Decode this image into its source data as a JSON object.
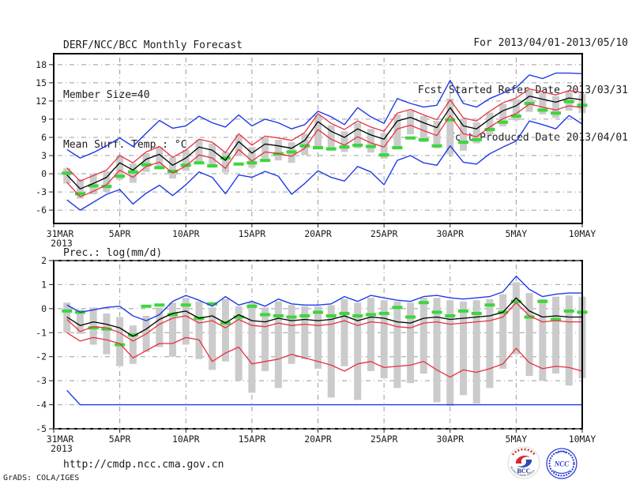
{
  "header": {
    "title": "DERF/NCC/BCC Monthly Forecast",
    "member_size": "Member Size=40",
    "temp_panel_label": "Mean Surf. Temp.: °C",
    "for_range": "For 2013/04/01-2013/05/10",
    "fcst_started": "Fcst Started Refer Date 2013/03/31",
    "fcst_produced": "Fcst Produced Date 2013/04/01"
  },
  "prec_panel_label": "Prec.: log(mm/d)",
  "footer": {
    "url": "http://cmdp.ncc.cma.gov.cn",
    "grads_credit": "GrADS: COLA/IGES",
    "bcc_logo_text": "BCC",
    "bcc_logo_subtext": "BEIJING CLIMATE CENTER",
    "ncc_logo_text": "NCC"
  },
  "colors": {
    "envelope_blue": "#1e3ae6",
    "quartile_red": "#e8323e",
    "mean_black": "#000000",
    "obs_green": "#3cd63c",
    "spread_gray": "#cbcbcb",
    "grid_gray": "#9a9a9a"
  },
  "chart_data": [
    {
      "id": "temperature",
      "type": "line",
      "title": "Mean Surf. Temp.: °C",
      "xlabel": "",
      "ylabel": "",
      "grid": true,
      "legend": "none",
      "xlim": [
        0,
        40
      ],
      "ylim": [
        -8.2,
        19.8
      ],
      "yticks": [
        -6,
        -3,
        0,
        3,
        6,
        9,
        12,
        15,
        18
      ],
      "xticks": {
        "labels": [
          "31MAR",
          "5APR",
          "10APR",
          "15APR",
          "20APR",
          "25APR",
          "30APR",
          "5MAY",
          "10MAY"
        ],
        "days": [
          0,
          5,
          10,
          15,
          20,
          25,
          30,
          35,
          40
        ],
        "year_label": "2013"
      },
      "days": [
        1,
        2,
        3,
        4,
        5,
        6,
        7,
        8,
        9,
        10,
        11,
        12,
        13,
        14,
        15,
        16,
        17,
        18,
        19,
        20,
        21,
        22,
        23,
        24,
        25,
        26,
        27,
        28,
        29,
        30,
        31,
        32,
        33,
        34,
        35,
        36,
        37,
        38,
        39,
        40
      ],
      "series": [
        {
          "name": "blue-max",
          "color": "#1e3ae6",
          "width": 1.4,
          "values": [
            4.0,
            2.6,
            3.5,
            4.6,
            5.9,
            4.5,
            6.7,
            8.8,
            7.5,
            7.9,
            9.5,
            8.4,
            7.7,
            9.7,
            7.9,
            9.0,
            8.4,
            7.4,
            8.1,
            10.3,
            9.4,
            8.1,
            10.9,
            9.4,
            8.3,
            12.4,
            11.6,
            11.0,
            11.3,
            15.4,
            11.6,
            11.0,
            12.4,
            13.3,
            14.2,
            16.3,
            15.7,
            16.6,
            16.6,
            16.5
          ]
        },
        {
          "name": "red-upper",
          "color": "#e8323e",
          "width": 1.3,
          "values": [
            1.0,
            -1.2,
            -0.3,
            0.6,
            3.0,
            1.8,
            3.6,
            4.5,
            2.7,
            3.9,
            5.7,
            5.2,
            3.5,
            6.6,
            4.7,
            6.2,
            5.9,
            5.5,
            6.8,
            9.9,
            8.3,
            7.3,
            8.7,
            7.7,
            7.0,
            10.0,
            10.6,
            9.7,
            8.9,
            12.2,
            9.2,
            8.7,
            10.3,
            11.7,
            12.5,
            14.0,
            13.5,
            13.0,
            13.7,
            13.4
          ]
        },
        {
          "name": "black-mean",
          "color": "#000000",
          "width": 1.3,
          "values": [
            -0.2,
            -2.5,
            -1.6,
            -0.6,
            1.8,
            0.6,
            2.4,
            3.2,
            1.4,
            2.6,
            4.4,
            3.9,
            2.2,
            5.3,
            3.4,
            4.9,
            4.6,
            4.2,
            5.5,
            8.6,
            7.0,
            6.0,
            7.4,
            6.4,
            5.7,
            8.7,
            9.3,
            8.4,
            7.6,
            10.9,
            7.9,
            7.4,
            9.0,
            10.4,
            11.2,
            12.8,
            12.3,
            11.8,
            12.5,
            12.2
          ]
        },
        {
          "name": "red-lower",
          "color": "#e8323e",
          "width": 1.3,
          "values": [
            -1.4,
            -3.8,
            -2.9,
            -1.8,
            0.6,
            -0.6,
            1.2,
            1.9,
            0.1,
            1.3,
            3.1,
            2.6,
            0.9,
            4.0,
            2.1,
            3.6,
            3.3,
            2.9,
            4.2,
            7.3,
            5.7,
            4.7,
            6.1,
            5.1,
            4.4,
            7.4,
            8.0,
            7.1,
            6.3,
            9.6,
            6.6,
            6.1,
            7.7,
            9.1,
            9.9,
            11.5,
            11.0,
            10.5,
            11.2,
            10.9
          ]
        },
        {
          "name": "blue-min",
          "color": "#1e3ae6",
          "width": 1.4,
          "values": [
            -4.3,
            -6.0,
            -4.7,
            -3.4,
            -2.6,
            -5.0,
            -3.2,
            -1.9,
            -3.6,
            -1.8,
            0.3,
            -0.6,
            -3.3,
            -0.2,
            -0.6,
            0.4,
            -0.4,
            -3.4,
            -1.6,
            0.5,
            -0.6,
            -1.2,
            1.2,
            0.3,
            -1.8,
            2.2,
            3.0,
            1.8,
            1.4,
            4.6,
            1.9,
            1.6,
            3.3,
            4.4,
            5.4,
            8.7,
            8.1,
            7.4,
            9.6,
            8.2
          ]
        },
        {
          "name": "green-dashes",
          "color": "#3cd63c",
          "style": "dashes",
          "values": [
            0.1,
            -3.3,
            -2.0,
            -2.1,
            -0.4,
            0.3,
            1.5,
            1.0,
            0.4,
            1.4,
            1.8,
            1.3,
            2.6,
            1.6,
            1.8,
            2.2,
            3.3,
            3.6,
            4.6,
            4.3,
            4.1,
            4.4,
            4.7,
            4.5,
            3.1,
            4.3,
            5.9,
            5.6,
            4.6,
            8.9,
            5.2,
            5.6,
            7.3,
            8.5,
            9.5,
            11.6,
            10.5,
            10.0,
            11.9,
            11.3
          ]
        }
      ],
      "bars": {
        "name": "gray-spread-bars",
        "color": "#cbcbcb",
        "top": [
          0.9,
          -0.9,
          0.0,
          0.4,
          2.9,
          1.7,
          3.4,
          4.4,
          2.7,
          3.9,
          5.6,
          5.0,
          3.6,
          6.4,
          4.4,
          6.0,
          5.6,
          5.2,
          6.6,
          9.7,
          8.0,
          7.0,
          8.4,
          7.4,
          6.7,
          9.8,
          10.4,
          9.5,
          8.7,
          12.4,
          9.0,
          8.5,
          10.1,
          11.5,
          12.3,
          13.8,
          13.3,
          12.8,
          13.5,
          13.2
        ],
        "bottom": [
          -1.6,
          -4.1,
          -3.4,
          -3.0,
          -1.0,
          -1.5,
          0.3,
          0.8,
          -0.8,
          0.5,
          2.0,
          1.0,
          0.2,
          2.9,
          1.0,
          2.5,
          2.2,
          1.8,
          3.1,
          4.0,
          3.8,
          3.6,
          4.2,
          3.5,
          2.5,
          4.0,
          6.5,
          5.2,
          4.2,
          3.2,
          3.8,
          5.0,
          6.5,
          7.8,
          8.8,
          10.2,
          9.8,
          9.2,
          10.4,
          10.0
        ]
      }
    },
    {
      "id": "precipitation",
      "type": "line",
      "title": "Prec.: log(mm/d)",
      "xlabel": "",
      "ylabel": "",
      "grid": true,
      "legend": "none",
      "xlim": [
        0,
        40
      ],
      "ylim": [
        -5,
        2
      ],
      "yticks": [
        -5,
        -4,
        -3,
        -2,
        -1,
        0,
        1,
        2
      ],
      "xticks": {
        "labels": [
          "31MAR",
          "5APR",
          "10APR",
          "15APR",
          "20APR",
          "25APR",
          "30APR",
          "5MAY",
          "10MAY"
        ],
        "days": [
          0,
          5,
          10,
          15,
          20,
          25,
          30,
          35,
          40
        ],
        "year_label": "2013"
      },
      "days": [
        1,
        2,
        3,
        4,
        5,
        6,
        7,
        8,
        9,
        10,
        11,
        12,
        13,
        14,
        15,
        16,
        17,
        18,
        19,
        20,
        21,
        22,
        23,
        24,
        25,
        26,
        27,
        28,
        29,
        30,
        31,
        32,
        33,
        34,
        35,
        36,
        37,
        38,
        39,
        40
      ],
      "series": [
        {
          "name": "blue-max",
          "color": "#1e3ae6",
          "width": 1.4,
          "values": [
            0.15,
            -0.15,
            -0.05,
            0.05,
            0.1,
            -0.3,
            -0.5,
            -0.25,
            0.3,
            0.55,
            0.35,
            0.1,
            0.5,
            0.15,
            0.3,
            0.1,
            0.4,
            0.2,
            0.15,
            0.15,
            0.2,
            0.5,
            0.3,
            0.55,
            0.45,
            0.35,
            0.3,
            0.5,
            0.55,
            0.45,
            0.4,
            0.45,
            0.5,
            0.7,
            1.35,
            0.8,
            0.5,
            0.6,
            0.65,
            0.65
          ]
        },
        {
          "name": "red-upper",
          "color": "#e8323e",
          "width": 1.3,
          "values": [
            -0.45,
            -0.95,
            -0.75,
            -0.8,
            -1.0,
            -1.35,
            -1.05,
            -0.65,
            -0.4,
            -0.3,
            -0.6,
            -0.5,
            -0.8,
            -0.45,
            -0.7,
            -0.75,
            -0.6,
            -0.7,
            -0.65,
            -0.7,
            -0.65,
            -0.5,
            -0.7,
            -0.55,
            -0.6,
            -0.75,
            -0.8,
            -0.6,
            -0.55,
            -0.65,
            -0.6,
            -0.55,
            -0.5,
            -0.35,
            0.25,
            -0.3,
            -0.55,
            -0.5,
            -0.55,
            -0.55
          ]
        },
        {
          "name": "black-mean",
          "color": "#000000",
          "width": 1.3,
          "values": [
            -0.35,
            -0.7,
            -0.55,
            -0.65,
            -0.8,
            -1.15,
            -0.85,
            -0.45,
            -0.2,
            -0.1,
            -0.4,
            -0.3,
            -0.6,
            -0.25,
            -0.5,
            -0.55,
            -0.4,
            -0.5,
            -0.45,
            -0.5,
            -0.45,
            -0.3,
            -0.5,
            -0.35,
            -0.4,
            -0.55,
            -0.6,
            -0.4,
            -0.35,
            -0.45,
            -0.4,
            -0.35,
            -0.3,
            -0.15,
            0.45,
            -0.1,
            -0.35,
            -0.3,
            -0.35,
            -0.35
          ]
        },
        {
          "name": "red-lower",
          "color": "#e8323e",
          "width": 1.3,
          "values": [
            -1.0,
            -1.35,
            -1.2,
            -1.3,
            -1.45,
            -2.05,
            -1.75,
            -1.45,
            -1.45,
            -1.2,
            -1.3,
            -2.2,
            -1.85,
            -1.6,
            -2.3,
            -2.2,
            -2.1,
            -1.9,
            -2.05,
            -2.2,
            -2.35,
            -2.6,
            -2.3,
            -2.2,
            -2.45,
            -2.4,
            -2.35,
            -2.2,
            -2.55,
            -2.85,
            -2.55,
            -2.65,
            -2.5,
            -2.3,
            -1.65,
            -2.25,
            -2.5,
            -2.4,
            -2.45,
            -2.6
          ]
        },
        {
          "name": "blue-min",
          "color": "#1e3ae6",
          "width": 1.4,
          "values": [
            -3.4,
            -4,
            -4,
            -4,
            -4,
            -4,
            -4,
            -4,
            -4,
            -4,
            -4,
            -4,
            -4,
            -4,
            -4,
            -4,
            -4,
            -4,
            -4,
            -4,
            -4,
            -4,
            -4,
            -4,
            -4,
            -4,
            -4,
            -4,
            -4,
            -4,
            -4,
            -4,
            -4,
            -4,
            -4,
            -4,
            -4,
            -4,
            -4,
            -4
          ]
        },
        {
          "name": "green-dashes",
          "color": "#3cd63c",
          "style": "dashes",
          "values": [
            -0.1,
            -0.15,
            -0.8,
            -0.85,
            -1.5,
            -1.1,
            0.1,
            0.15,
            -0.25,
            0.15,
            -0.4,
            0.2,
            -0.6,
            -0.35,
            0.1,
            -0.25,
            -0.3,
            -0.35,
            -0.3,
            -0.15,
            -0.3,
            -0.2,
            -0.3,
            -0.25,
            -0.2,
            0.05,
            -0.35,
            0.25,
            -0.15,
            -0.3,
            -0.1,
            -0.2,
            0.15,
            -0.15,
            0.3,
            -0.35,
            0.3,
            -0.45,
            -0.1,
            -0.15
          ]
        }
      ],
      "bars": {
        "name": "gray-spread-bars",
        "color": "#cbcbcb",
        "top": [
          0.25,
          -0.05,
          0.05,
          -0.2,
          -0.35,
          -0.7,
          -0.3,
          0.05,
          0.25,
          0.45,
          0.3,
          0.05,
          0.4,
          0.1,
          0.25,
          0.05,
          0.3,
          0.15,
          0.1,
          0.1,
          0.15,
          0.4,
          0.25,
          0.45,
          0.35,
          0.3,
          0.25,
          0.45,
          0.45,
          0.35,
          0.3,
          0.35,
          0.4,
          0.6,
          1.1,
          0.65,
          0.4,
          0.5,
          0.55,
          0.5
        ],
        "bottom": [
          -1.0,
          -1.05,
          -1.5,
          -1.9,
          -2.4,
          -2.3,
          -1.8,
          -1.6,
          -2.0,
          -1.5,
          -2.1,
          -2.55,
          -2.2,
          -3.0,
          -3.5,
          -2.6,
          -3.3,
          -2.3,
          -2.1,
          -2.5,
          -3.7,
          -2.4,
          -3.8,
          -2.6,
          -2.9,
          -3.3,
          -3.1,
          -2.7,
          -3.9,
          -4.05,
          -3.6,
          -3.95,
          -3.3,
          -2.5,
          -1.9,
          -2.8,
          -3.0,
          -2.7,
          -3.2,
          -2.9
        ]
      }
    }
  ]
}
